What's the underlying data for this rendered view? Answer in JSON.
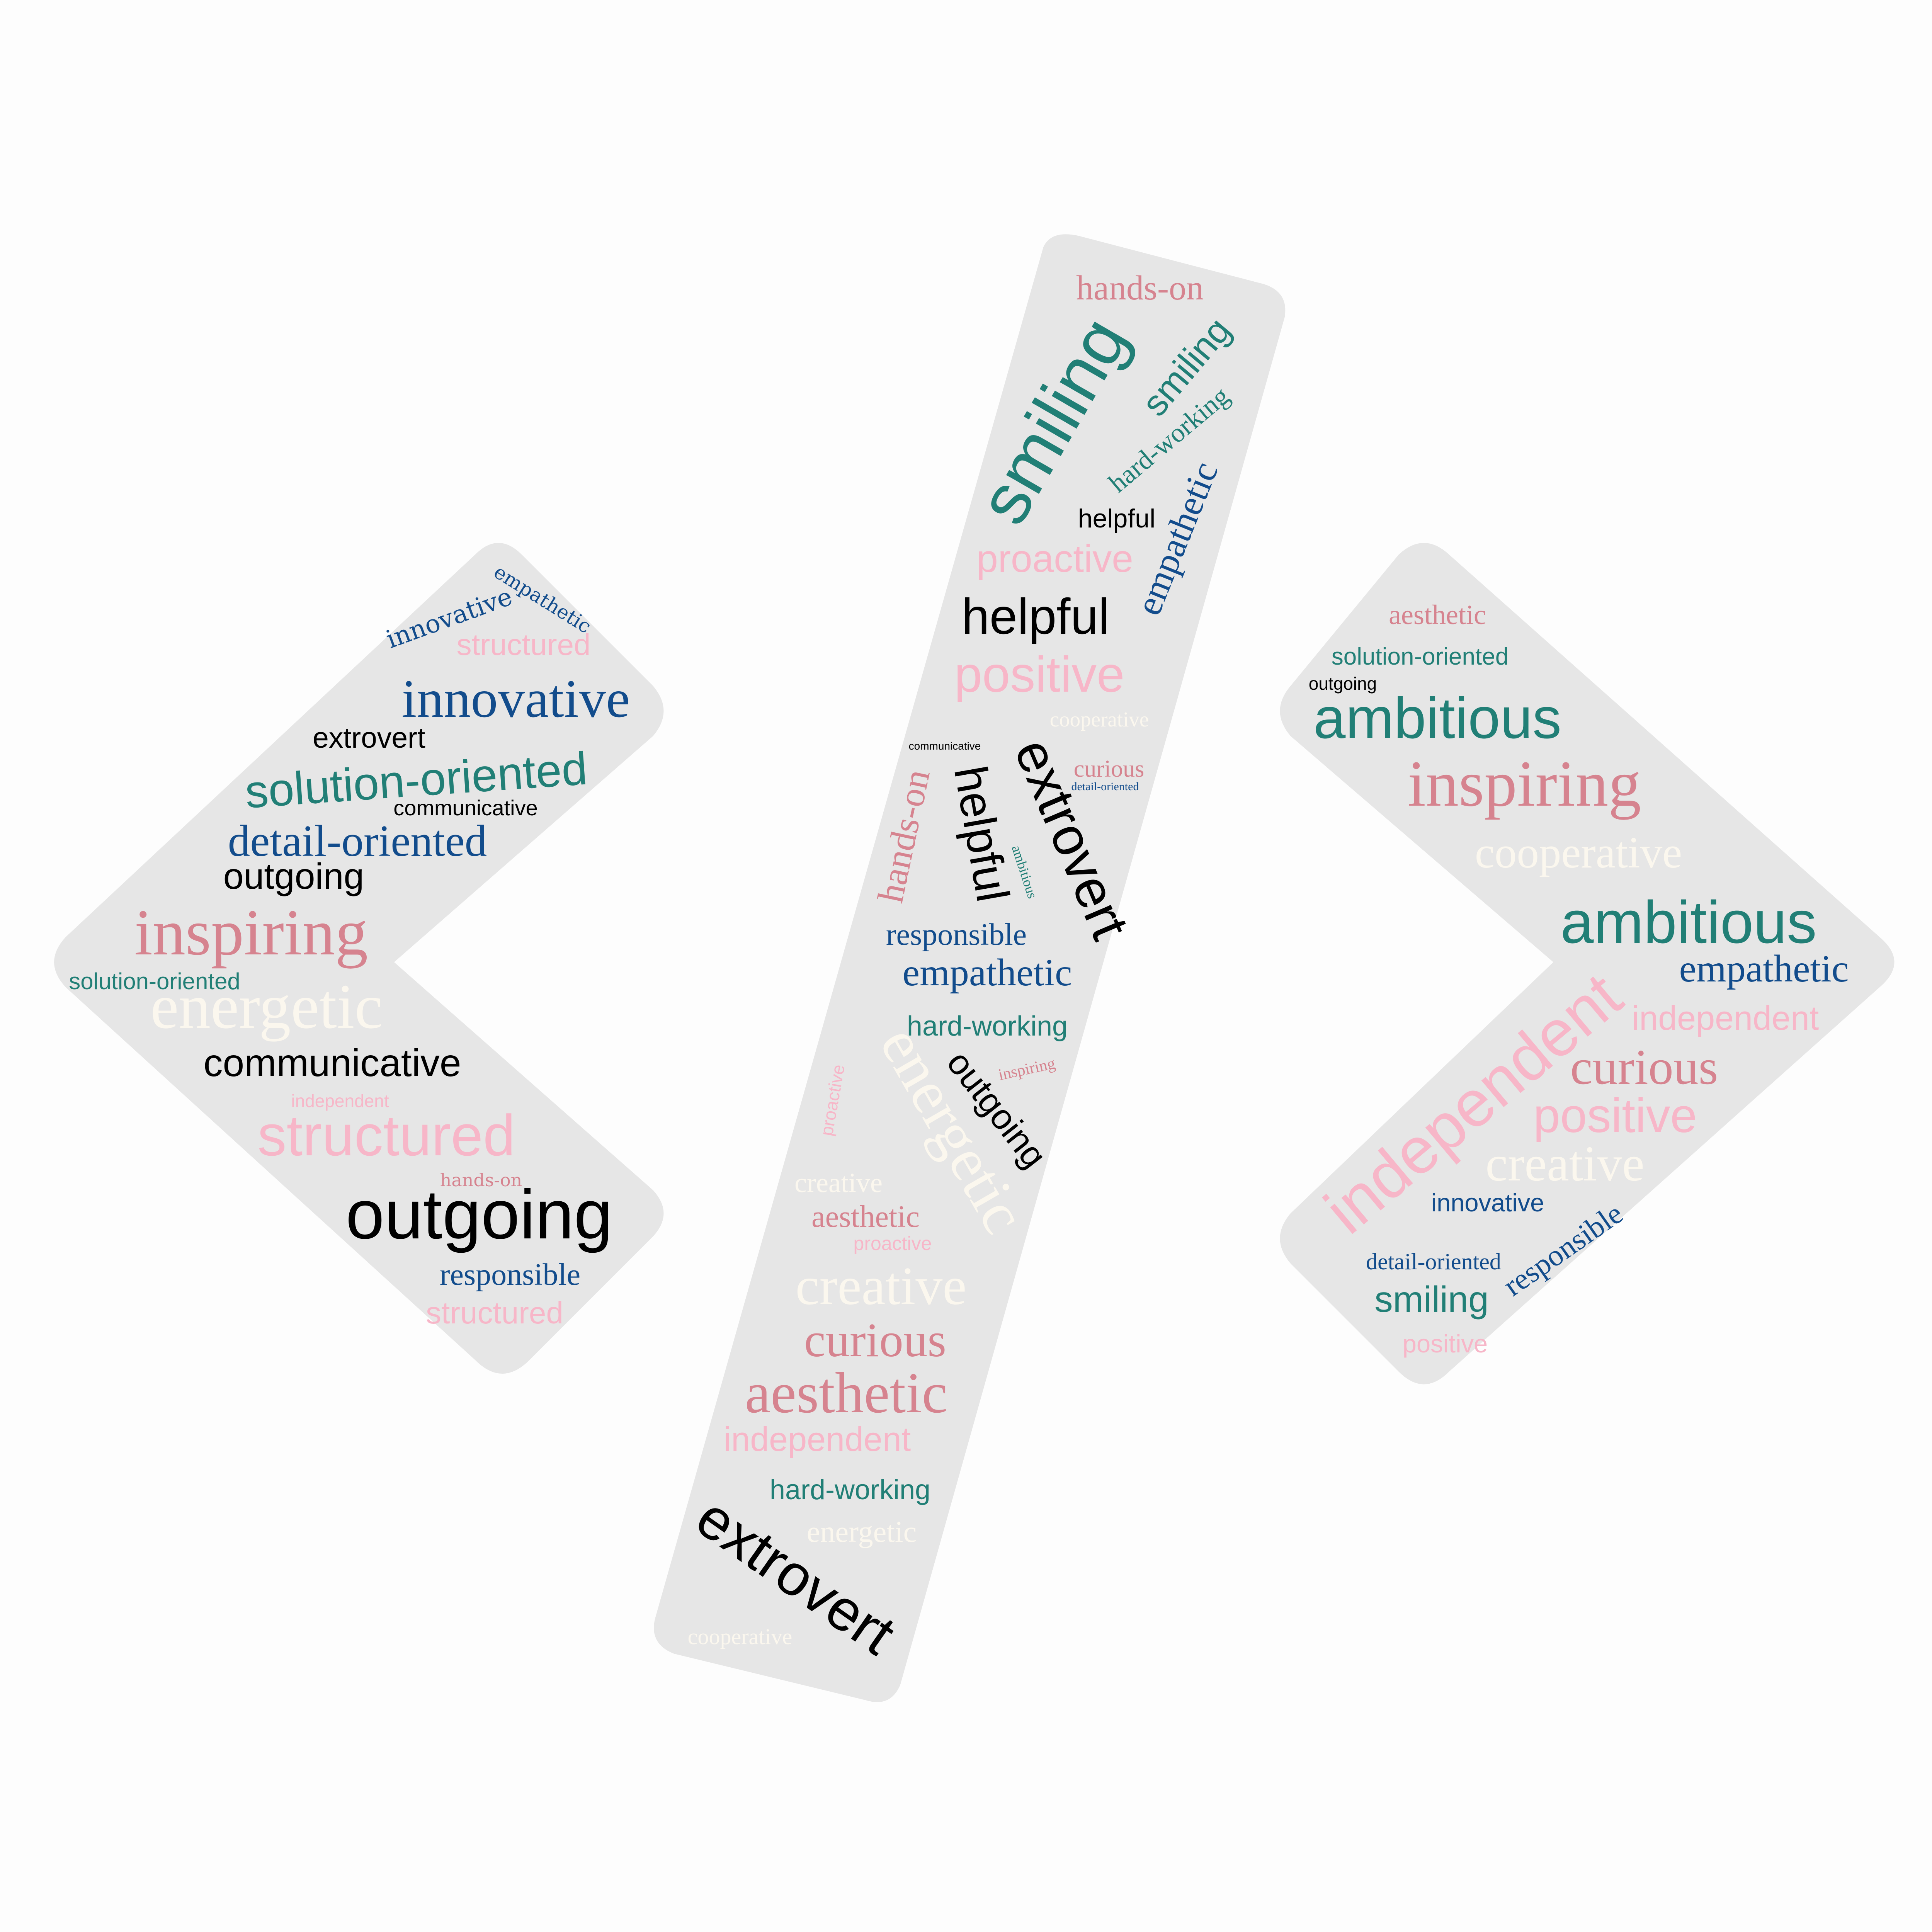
{
  "colors": {
    "background": "#fdfdfd",
    "shape": "#e6e6e6",
    "teal": "#217f76",
    "navy": "#124c8c",
    "rose": "#d6838f",
    "pink": "#f7b6c8",
    "cream": "#fbf7ee",
    "black": "#000000"
  },
  "shapes": {
    "left": "less-than-bracket",
    "middle": "slash",
    "right": "greater-than-bracket"
  },
  "words": {
    "l01": "empathetic",
    "l02": "innovative",
    "l03": "structured",
    "l04": "innovative",
    "l05": "extrovert",
    "l06": "solution-oriented",
    "l07": "communicative",
    "l08": "detail-oriented",
    "l09": "outgoing",
    "l10": "inspiring",
    "l11": "solution-oriented",
    "l12": "energetic",
    "l13": "communicative",
    "l14": "independent",
    "l15": "structured",
    "l16": "hands-on",
    "l17": "outgoing",
    "l18": "responsible",
    "l19": "structured",
    "m01": "hands-on",
    "m02": "smiling",
    "m03": "smiling",
    "m04": "hard-working",
    "m05": "empathetic",
    "m06": "helpful",
    "m07": "proactive",
    "m08": "helpful",
    "m09": "positive",
    "m10": "cooperative",
    "m11": "communicative",
    "m12": "extrovert",
    "m13": "curious",
    "m14": "detail-oriented",
    "m15": "hands-on",
    "m16": "helpful",
    "m17": "ambitious",
    "m18": "responsible",
    "m19": "empathetic",
    "m20": "hard-working",
    "m21": "energetic",
    "m22": "outgoing",
    "m23": "inspiring",
    "m24": "proactive",
    "m25": "creative",
    "m26": "aesthetic",
    "m27": "proactive",
    "m28": "creative",
    "m29": "curious",
    "m30": "aesthetic",
    "m31": "independent",
    "m32": "hard-working",
    "m33": "energetic",
    "m34": "extrovert",
    "m35": "cooperative",
    "r01": "aesthetic",
    "r02": "solution-oriented",
    "r03": "outgoing",
    "r04": "ambitious",
    "r05": "inspiring",
    "r06": "cooperative",
    "r07": "ambitious",
    "r08": "empathetic",
    "r09": "independent",
    "r10": "independent",
    "r11": "curious",
    "r12": "positive",
    "r13": "creative",
    "r14": "innovative",
    "r15": "responsible",
    "r16": "detail-oriented",
    "r17": "smiling",
    "r18": "positive"
  }
}
